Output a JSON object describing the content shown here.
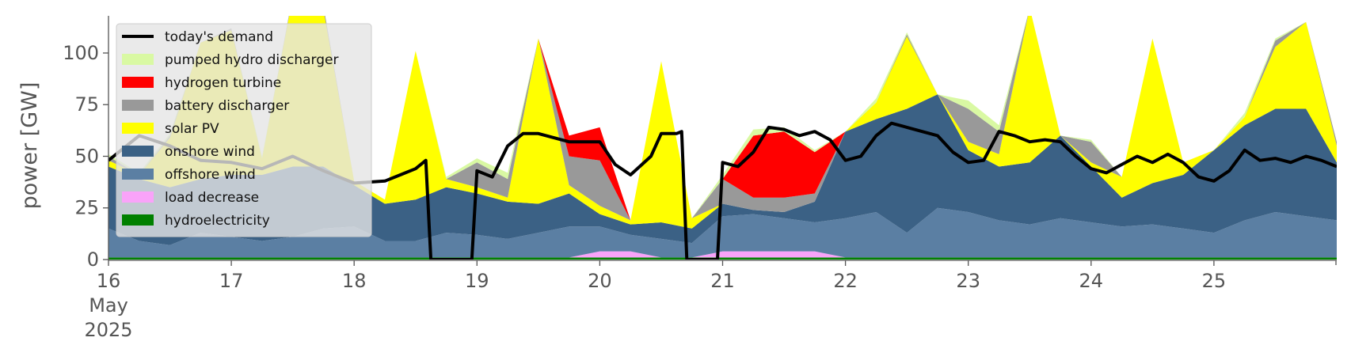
{
  "chart_data": {
    "type": "area",
    "ylabel": "power [GW]",
    "ylim": [
      0,
      118
    ],
    "xlim": [
      0,
      240
    ],
    "x_unit": "hours from 2025-05-16 00:00",
    "grid": false,
    "legend_position": "upper-left",
    "y_ticks": [
      0,
      25,
      50,
      75,
      100
    ],
    "x_ticks": [
      {
        "x": 0,
        "label": "16",
        "sublabel": [
          "May",
          "2025"
        ]
      },
      {
        "x": 24,
        "label": "17"
      },
      {
        "x": 48,
        "label": "18"
      },
      {
        "x": 72,
        "label": "19"
      },
      {
        "x": 96,
        "label": "20"
      },
      {
        "x": 120,
        "label": "21"
      },
      {
        "x": 144,
        "label": "22"
      },
      {
        "x": 168,
        "label": "23"
      },
      {
        "x": 192,
        "label": "24"
      },
      {
        "x": 216,
        "label": "25"
      }
    ],
    "x": [
      0,
      6,
      12,
      18,
      24,
      30,
      36,
      42,
      48,
      54,
      60,
      66,
      72,
      78,
      84,
      90,
      96,
      102,
      108,
      114,
      120,
      126,
      132,
      138,
      144,
      150,
      156,
      162,
      168,
      174,
      180,
      186,
      192,
      198,
      204,
      210,
      216,
      222,
      228,
      234,
      240
    ],
    "stack_order": [
      "hydroelectricity",
      "load decrease",
      "offshore wind",
      "onshore wind",
      "solar PV",
      "battery discharger",
      "hydrogen turbine",
      "pumped hydro discharger"
    ],
    "series": [
      {
        "name": "hydroelectricity",
        "color": "#008000",
        "values": [
          1,
          1,
          1,
          1,
          1,
          1,
          1,
          1,
          1,
          1,
          1,
          1,
          1,
          1,
          1,
          1,
          1,
          1,
          1,
          1,
          1,
          1,
          1,
          1,
          1,
          1,
          1,
          1,
          1,
          1,
          1,
          1,
          1,
          1,
          1,
          1,
          1,
          1,
          1,
          1,
          1
        ]
      },
      {
        "name": "load decrease",
        "color": "#f9a3f9",
        "values": [
          0,
          0,
          0,
          0,
          0,
          0,
          0,
          0,
          0,
          0,
          0,
          0,
          0,
          0,
          0,
          0,
          3,
          3,
          0,
          0,
          3,
          3,
          3,
          3,
          0,
          0,
          0,
          0,
          0,
          0,
          0,
          0,
          0,
          0,
          0,
          0,
          0,
          0,
          0,
          0,
          0
        ]
      },
      {
        "name": "offshore wind",
        "color": "#5b7fa3",
        "values": [
          14,
          8,
          6,
          12,
          10,
          8,
          10,
          14,
          15,
          8,
          8,
          12,
          11,
          9,
          12,
          15,
          12,
          8,
          9,
          7,
          17,
          18,
          16,
          14,
          19,
          22,
          12,
          24,
          22,
          18,
          16,
          19,
          17,
          15,
          16,
          14,
          12,
          18,
          22,
          20,
          18
        ]
      },
      {
        "name": "onshore wind",
        "color": "#3b6185",
        "values": [
          30,
          30,
          28,
          26,
          30,
          32,
          34,
          30,
          20,
          18,
          20,
          22,
          20,
          18,
          14,
          16,
          6,
          5,
          8,
          7,
          6,
          2,
          3,
          10,
          42,
          45,
          60,
          55,
          30,
          26,
          30,
          40,
          27,
          14,
          20,
          26,
          40,
          46,
          50,
          52,
          28
        ]
      },
      {
        "name": "solar PV",
        "color": "#ffff00",
        "values": [
          3,
          2,
          24,
          66,
          70,
          8,
          82,
          76,
          2,
          2,
          72,
          4,
          3,
          2,
          80,
          4,
          4,
          2,
          78,
          5,
          0,
          0,
          0,
          0,
          0,
          8,
          35,
          0,
          4,
          6,
          75,
          0,
          2,
          10,
          70,
          6,
          0,
          4,
          30,
          42,
          8
        ]
      },
      {
        "name": "battery discharger",
        "color": "#999999",
        "values": [
          2,
          0,
          1,
          0,
          1,
          0,
          1,
          2,
          0,
          0,
          0,
          0,
          12,
          9,
          0,
          14,
          22,
          0,
          0,
          0,
          12,
          6,
          7,
          4,
          0,
          0,
          1,
          0,
          16,
          11,
          0,
          0,
          10,
          0,
          0,
          0,
          0,
          0,
          3,
          0,
          2
        ]
      },
      {
        "name": "hydrogen turbine",
        "color": "#ff0000",
        "values": [
          0,
          0,
          0,
          0,
          0,
          0,
          0,
          0,
          0,
          0,
          0,
          0,
          0,
          0,
          0,
          10,
          16,
          0,
          0,
          0,
          0,
          30,
          32,
          20,
          0,
          0,
          0,
          0,
          0,
          0,
          0,
          0,
          0,
          0,
          0,
          0,
          0,
          0,
          0,
          0,
          0
        ]
      },
      {
        "name": "pumped hydro discharger",
        "color": "#d9f9a3",
        "values": [
          1,
          1,
          1,
          0,
          0,
          1,
          0,
          0,
          0,
          0,
          0,
          1,
          2,
          3,
          0,
          0,
          0,
          0,
          0,
          0,
          2,
          3,
          2,
          1,
          0,
          2,
          1,
          0,
          4,
          3,
          0,
          0,
          1,
          0,
          0,
          0,
          0,
          2,
          1,
          0,
          0
        ]
      }
    ],
    "demand": {
      "name": "today's demand",
      "color": "#000000",
      "points": [
        [
          0,
          48
        ],
        [
          6,
          60
        ],
        [
          12,
          55
        ],
        [
          18,
          48
        ],
        [
          24,
          47
        ],
        [
          30,
          44
        ],
        [
          36,
          50
        ],
        [
          42,
          43
        ],
        [
          48,
          37
        ],
        [
          54,
          38
        ],
        [
          60,
          44
        ],
        [
          62,
          48
        ],
        [
          63,
          0
        ],
        [
          71,
          0
        ],
        [
          72,
          43
        ],
        [
          75,
          40
        ],
        [
          78,
          55
        ],
        [
          81,
          61
        ],
        [
          84,
          61
        ],
        [
          90,
          57
        ],
        [
          96,
          57
        ],
        [
          99,
          46
        ],
        [
          102,
          41
        ],
        [
          106,
          50
        ],
        [
          108,
          61
        ],
        [
          111,
          61
        ],
        [
          112,
          62
        ],
        [
          113,
          0
        ],
        [
          119,
          0
        ],
        [
          120,
          47
        ],
        [
          123,
          45
        ],
        [
          126,
          52
        ],
        [
          129,
          64
        ],
        [
          132,
          63
        ],
        [
          135,
          60
        ],
        [
          138,
          62
        ],
        [
          141,
          58
        ],
        [
          144,
          48
        ],
        [
          147,
          50
        ],
        [
          150,
          60
        ],
        [
          153,
          66
        ],
        [
          156,
          64
        ],
        [
          159,
          62
        ],
        [
          162,
          60
        ],
        [
          165,
          52
        ],
        [
          168,
          47
        ],
        [
          171,
          48
        ],
        [
          174,
          62
        ],
        [
          177,
          60
        ],
        [
          180,
          57
        ],
        [
          183,
          58
        ],
        [
          186,
          57
        ],
        [
          189,
          50
        ],
        [
          192,
          44
        ],
        [
          195,
          42
        ],
        [
          198,
          46
        ],
        [
          201,
          50
        ],
        [
          204,
          47
        ],
        [
          207,
          51
        ],
        [
          210,
          47
        ],
        [
          213,
          40
        ],
        [
          216,
          38
        ],
        [
          219,
          43
        ],
        [
          222,
          53
        ],
        [
          225,
          48
        ],
        [
          228,
          49
        ],
        [
          231,
          47
        ],
        [
          234,
          50
        ],
        [
          237,
          48
        ],
        [
          240,
          45
        ]
      ]
    },
    "legend": [
      {
        "label": "today's demand",
        "color": "#000000",
        "kind": "line"
      },
      {
        "label": "pumped hydro discharger",
        "color": "#d9f9a3",
        "kind": "patch"
      },
      {
        "label": "hydrogen turbine",
        "color": "#ff0000",
        "kind": "patch"
      },
      {
        "label": "battery discharger",
        "color": "#999999",
        "kind": "patch"
      },
      {
        "label": "solar PV",
        "color": "#ffff00",
        "kind": "patch"
      },
      {
        "label": "onshore wind",
        "color": "#3b6185",
        "kind": "patch"
      },
      {
        "label": "offshore wind",
        "color": "#5b7fa3",
        "kind": "patch"
      },
      {
        "label": "load decrease",
        "color": "#f9a3f9",
        "kind": "patch"
      },
      {
        "label": "hydroelectricity",
        "color": "#008000",
        "kind": "patch"
      }
    ]
  }
}
